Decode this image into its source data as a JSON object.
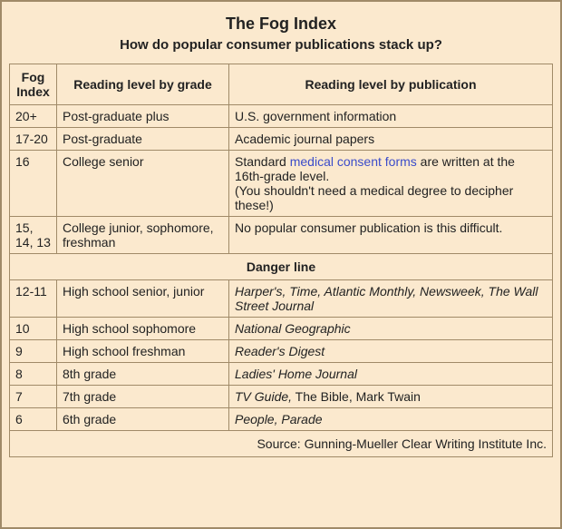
{
  "header": {
    "title": "The Fog Index",
    "subtitle": "How do popular consumer publications stack up?"
  },
  "columns": {
    "fog": "Fog Index",
    "grade": "Reading level by grade",
    "pub": "Reading level by publication"
  },
  "upper_rows": [
    {
      "fog": "20+",
      "grade": "Post-graduate plus",
      "pub_plain": "U.S. government information"
    },
    {
      "fog": "17-20",
      "grade": "Post-graduate",
      "pub_plain": "Academic journal papers"
    }
  ],
  "row16": {
    "fog": "16",
    "grade": "College senior",
    "pub_pre": "Standard ",
    "pub_link": "medical consent forms",
    "pub_post": " are written at the 16th-grade level.",
    "pub_note": "(You shouldn't need a medical degree to decipher these!)"
  },
  "row15": {
    "fog": "15, 14, 13",
    "grade": "College junior, sophomore, freshman",
    "pub": "No popular consumer publication is this difficult."
  },
  "danger": "Danger line",
  "lower_rows": [
    {
      "fog": "12-11",
      "grade": "High school senior, junior",
      "pub_italic": "Harper's, Time, Atlantic Monthly, Newsweek, The Wall Street Journal"
    },
    {
      "fog": "10",
      "grade": "High school sophomore",
      "pub_italic": "National Geographic"
    },
    {
      "fog": "9",
      "grade": "High school freshman",
      "pub_italic": "Reader's Digest"
    },
    {
      "fog": "8",
      "grade": "8th grade",
      "pub_italic": "Ladies' Home Journal"
    }
  ],
  "row7": {
    "fog": "7",
    "grade": "7th grade",
    "pub_italic": "TV Guide,",
    "pub_plain": " The Bible, Mark Twain"
  },
  "row6": {
    "fog": "6",
    "grade": "6th grade",
    "pub_italic": "People, Parade"
  },
  "source": "Source: Gunning-Mueller Clear Writing Institute Inc."
}
